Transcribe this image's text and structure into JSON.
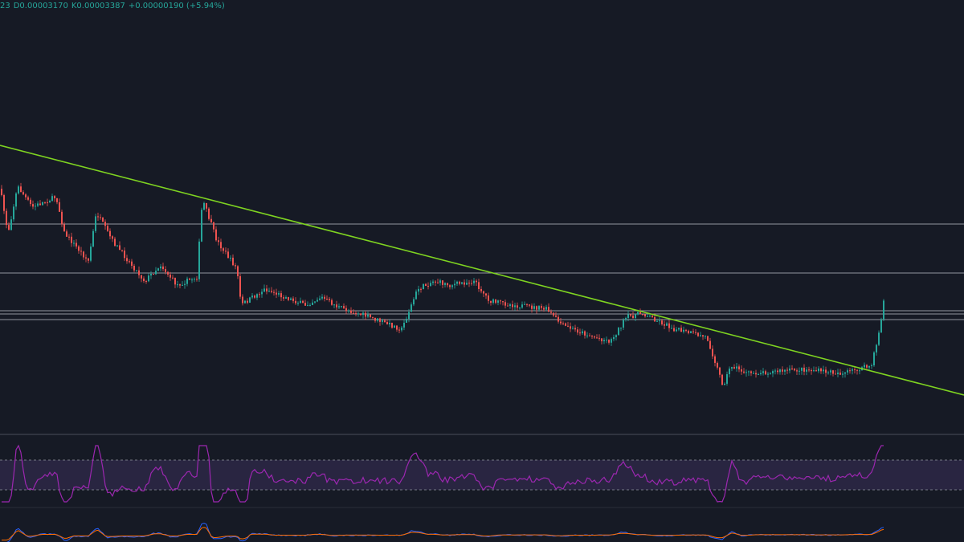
{
  "header": {
    "items": [
      "23",
      "D0.00003170",
      "K0.00003387",
      "+0.00000190 (+5.94%)"
    ]
  }
}
